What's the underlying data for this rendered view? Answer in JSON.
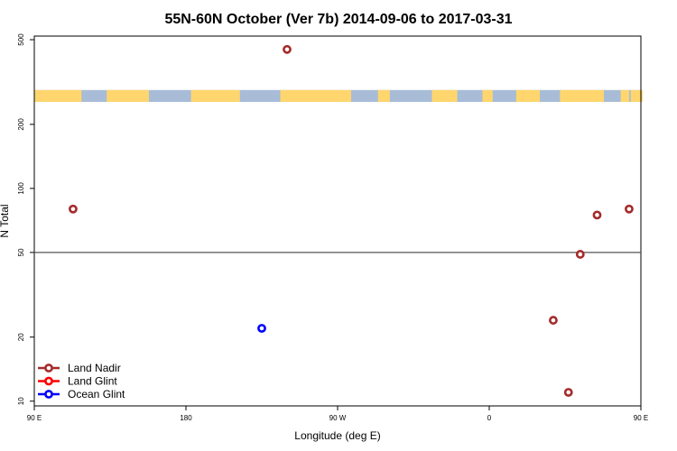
{
  "chart_data": {
    "type": "scatter",
    "title": "55N-60N October (Ver 7b)   2014-09-06 to 2017-03-31",
    "xlabel": "Longitude (deg E)",
    "ylabel": "N Total",
    "xlim": [
      90,
      450
    ],
    "ylim": [
      9.5,
      520
    ],
    "y_scale": "log",
    "x_ticks": [
      {
        "value": 90,
        "label": "90 E"
      },
      {
        "value": 180,
        "label": "180"
      },
      {
        "value": 270,
        "label": "90 W"
      },
      {
        "value": 360,
        "label": "0"
      },
      {
        "value": 450,
        "label": "90 E"
      },
      {
        "value": 540,
        "label": "180"
      }
    ],
    "y_ticks": [
      10,
      20,
      50,
      100,
      200,
      500
    ],
    "reference_line": 50,
    "map_band": {
      "y_low": 255,
      "y_high": 290,
      "land_color": "#FFD66E",
      "ocean_color": "#A8BCD8"
    },
    "legend_position": "bottom-left",
    "series": [
      {
        "name": "Land Nadir",
        "color": "#A52A2A",
        "points": [
          {
            "x": 113,
            "y": 80
          },
          {
            "x": 240,
            "y": 450
          },
          {
            "x": 398,
            "y": 24
          },
          {
            "x": 407,
            "y": 11
          },
          {
            "x": 414,
            "y": 49
          },
          {
            "x": 424,
            "y": 75
          },
          {
            "x": 443,
            "y": 80
          }
        ]
      },
      {
        "name": "Land Glint",
        "color": "#FF0000",
        "points": []
      },
      {
        "name": "Ocean Glint",
        "color": "#0000FF",
        "points": [
          {
            "x": 225,
            "y": 22
          }
        ]
      }
    ]
  }
}
